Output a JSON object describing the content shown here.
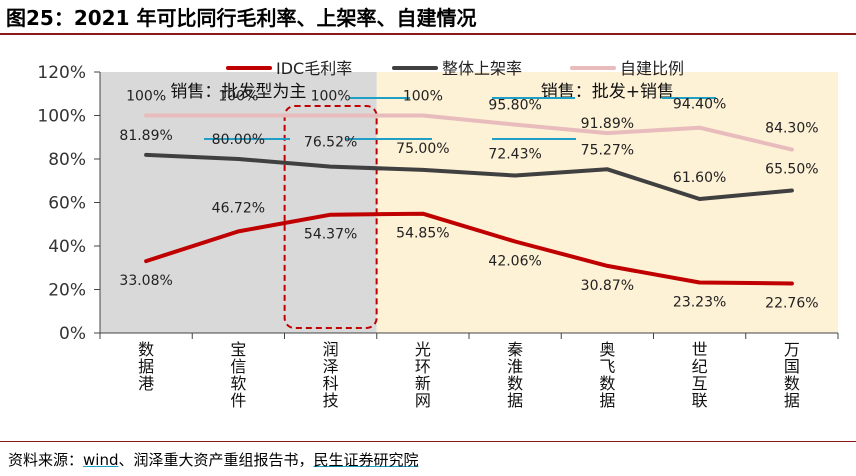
{
  "title": "图25：2021 年可比同行毛利率、上架率、自建情况",
  "source": {
    "prefix": "资料来源：",
    "wind": "wind",
    "rest": "、润泽重大资产重组报告书，",
    "org": "民生证券研究院"
  },
  "colors": {
    "idc": "#c00000",
    "rack": "#404040",
    "selfbuilt": "#e8bcbc",
    "zone_gray": "#d9d9d9",
    "zone_yellow": "#fdf1d6",
    "highlight": "#c00000",
    "accent_line": "#1f9fc6"
  },
  "chart_data": {
    "type": "line",
    "categories": [
      "数据港",
      "宝信软件",
      "润泽科技",
      "光环新网",
      "秦淮数据",
      "奥飞数据",
      "世纪互联",
      "万国数据"
    ],
    "ylim": [
      0,
      120
    ],
    "yticks": [
      "0%",
      "20%",
      "40%",
      "60%",
      "80%",
      "100%",
      "120%"
    ],
    "series": [
      {
        "name": "IDC毛利率",
        "values": [
          33.08,
          46.72,
          54.37,
          54.85,
          42.06,
          30.87,
          23.23,
          22.76
        ],
        "labels": [
          "33.08%",
          "46.72%",
          "54.37%",
          "54.85%",
          "42.06%",
          "30.87%",
          "23.23%",
          "22.76%"
        ]
      },
      {
        "name": "整体上架率",
        "values": [
          81.89,
          80.0,
          76.52,
          75.0,
          72.43,
          75.27,
          61.6,
          65.5
        ],
        "labels": [
          "81.89%",
          "80.00%",
          "76.52%",
          "75.00%",
          "72.43%",
          "75.27%",
          "61.60%",
          "65.50%"
        ]
      },
      {
        "name": "自建比例",
        "values": [
          100,
          100,
          100,
          100,
          95.8,
          91.89,
          94.4,
          84.3
        ],
        "labels": [
          "100%",
          "100%",
          "100%",
          "100%",
          "95.80%",
          "91.89%",
          "94.40%",
          "84.30%"
        ]
      }
    ],
    "zones": [
      {
        "label": "销售：批发型为主",
        "from": 0,
        "to": 2,
        "color": "#d9d9d9"
      },
      {
        "label": "销售：批发+销售",
        "from": 3,
        "to": 7,
        "color": "#fdf1d6"
      }
    ],
    "highlight_index": 2,
    "legend_position": "top"
  }
}
